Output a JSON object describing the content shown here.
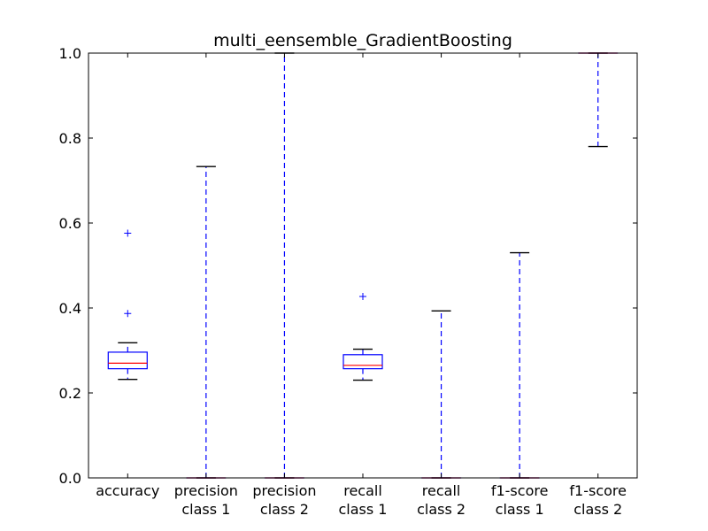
{
  "chart_data": {
    "type": "box",
    "title": "multi_eensemble_GradientBoosting",
    "xlabel": "",
    "ylabel": "",
    "ylim": [
      0.0,
      1.0
    ],
    "yticks": [
      0.0,
      0.2,
      0.4,
      0.6,
      0.8,
      1.0
    ],
    "ytick_labels": [
      "0.0",
      "0.2",
      "0.4",
      "0.6",
      "0.8",
      "1.0"
    ],
    "grid": false,
    "colors": {
      "box": "#0000ff",
      "median": "#ff0000",
      "whisker": "#0000ff",
      "cap": "#000000",
      "flier": "#0000ff"
    },
    "categories": [
      {
        "label": [
          "accuracy"
        ],
        "whisker_low": 0.232,
        "q1": 0.257,
        "median": 0.27,
        "q3": 0.296,
        "whisker_high": 0.318,
        "fliers": [
          0.387,
          0.576
        ]
      },
      {
        "label": [
          "precision",
          "class 1"
        ],
        "whisker_low": 0.0,
        "q1": 0.0,
        "median": 0.0,
        "q3": 0.0,
        "whisker_high": 0.733,
        "fliers": []
      },
      {
        "label": [
          "precision",
          "class 2"
        ],
        "whisker_low": 0.0,
        "q1": 0.0,
        "median": 0.0,
        "q3": 0.0,
        "whisker_high": 1.0,
        "fliers": []
      },
      {
        "label": [
          "recall",
          "class 1"
        ],
        "whisker_low": 0.23,
        "q1": 0.257,
        "median": 0.265,
        "q3": 0.29,
        "whisker_high": 0.303,
        "fliers": [
          0.427
        ]
      },
      {
        "label": [
          "recall",
          "class 2"
        ],
        "whisker_low": 0.0,
        "q1": 0.0,
        "median": 0.0,
        "q3": 0.0,
        "whisker_high": 0.393,
        "fliers": []
      },
      {
        "label": [
          "f1-score",
          "class 1"
        ],
        "whisker_low": 0.0,
        "q1": 0.0,
        "median": 0.0,
        "q3": 0.0,
        "whisker_high": 0.53,
        "fliers": []
      },
      {
        "label": [
          "f1-score",
          "class 2"
        ],
        "whisker_low": 0.78,
        "q1": 1.0,
        "median": 1.0,
        "q3": 1.0,
        "whisker_high": 1.0,
        "fliers": []
      }
    ]
  }
}
